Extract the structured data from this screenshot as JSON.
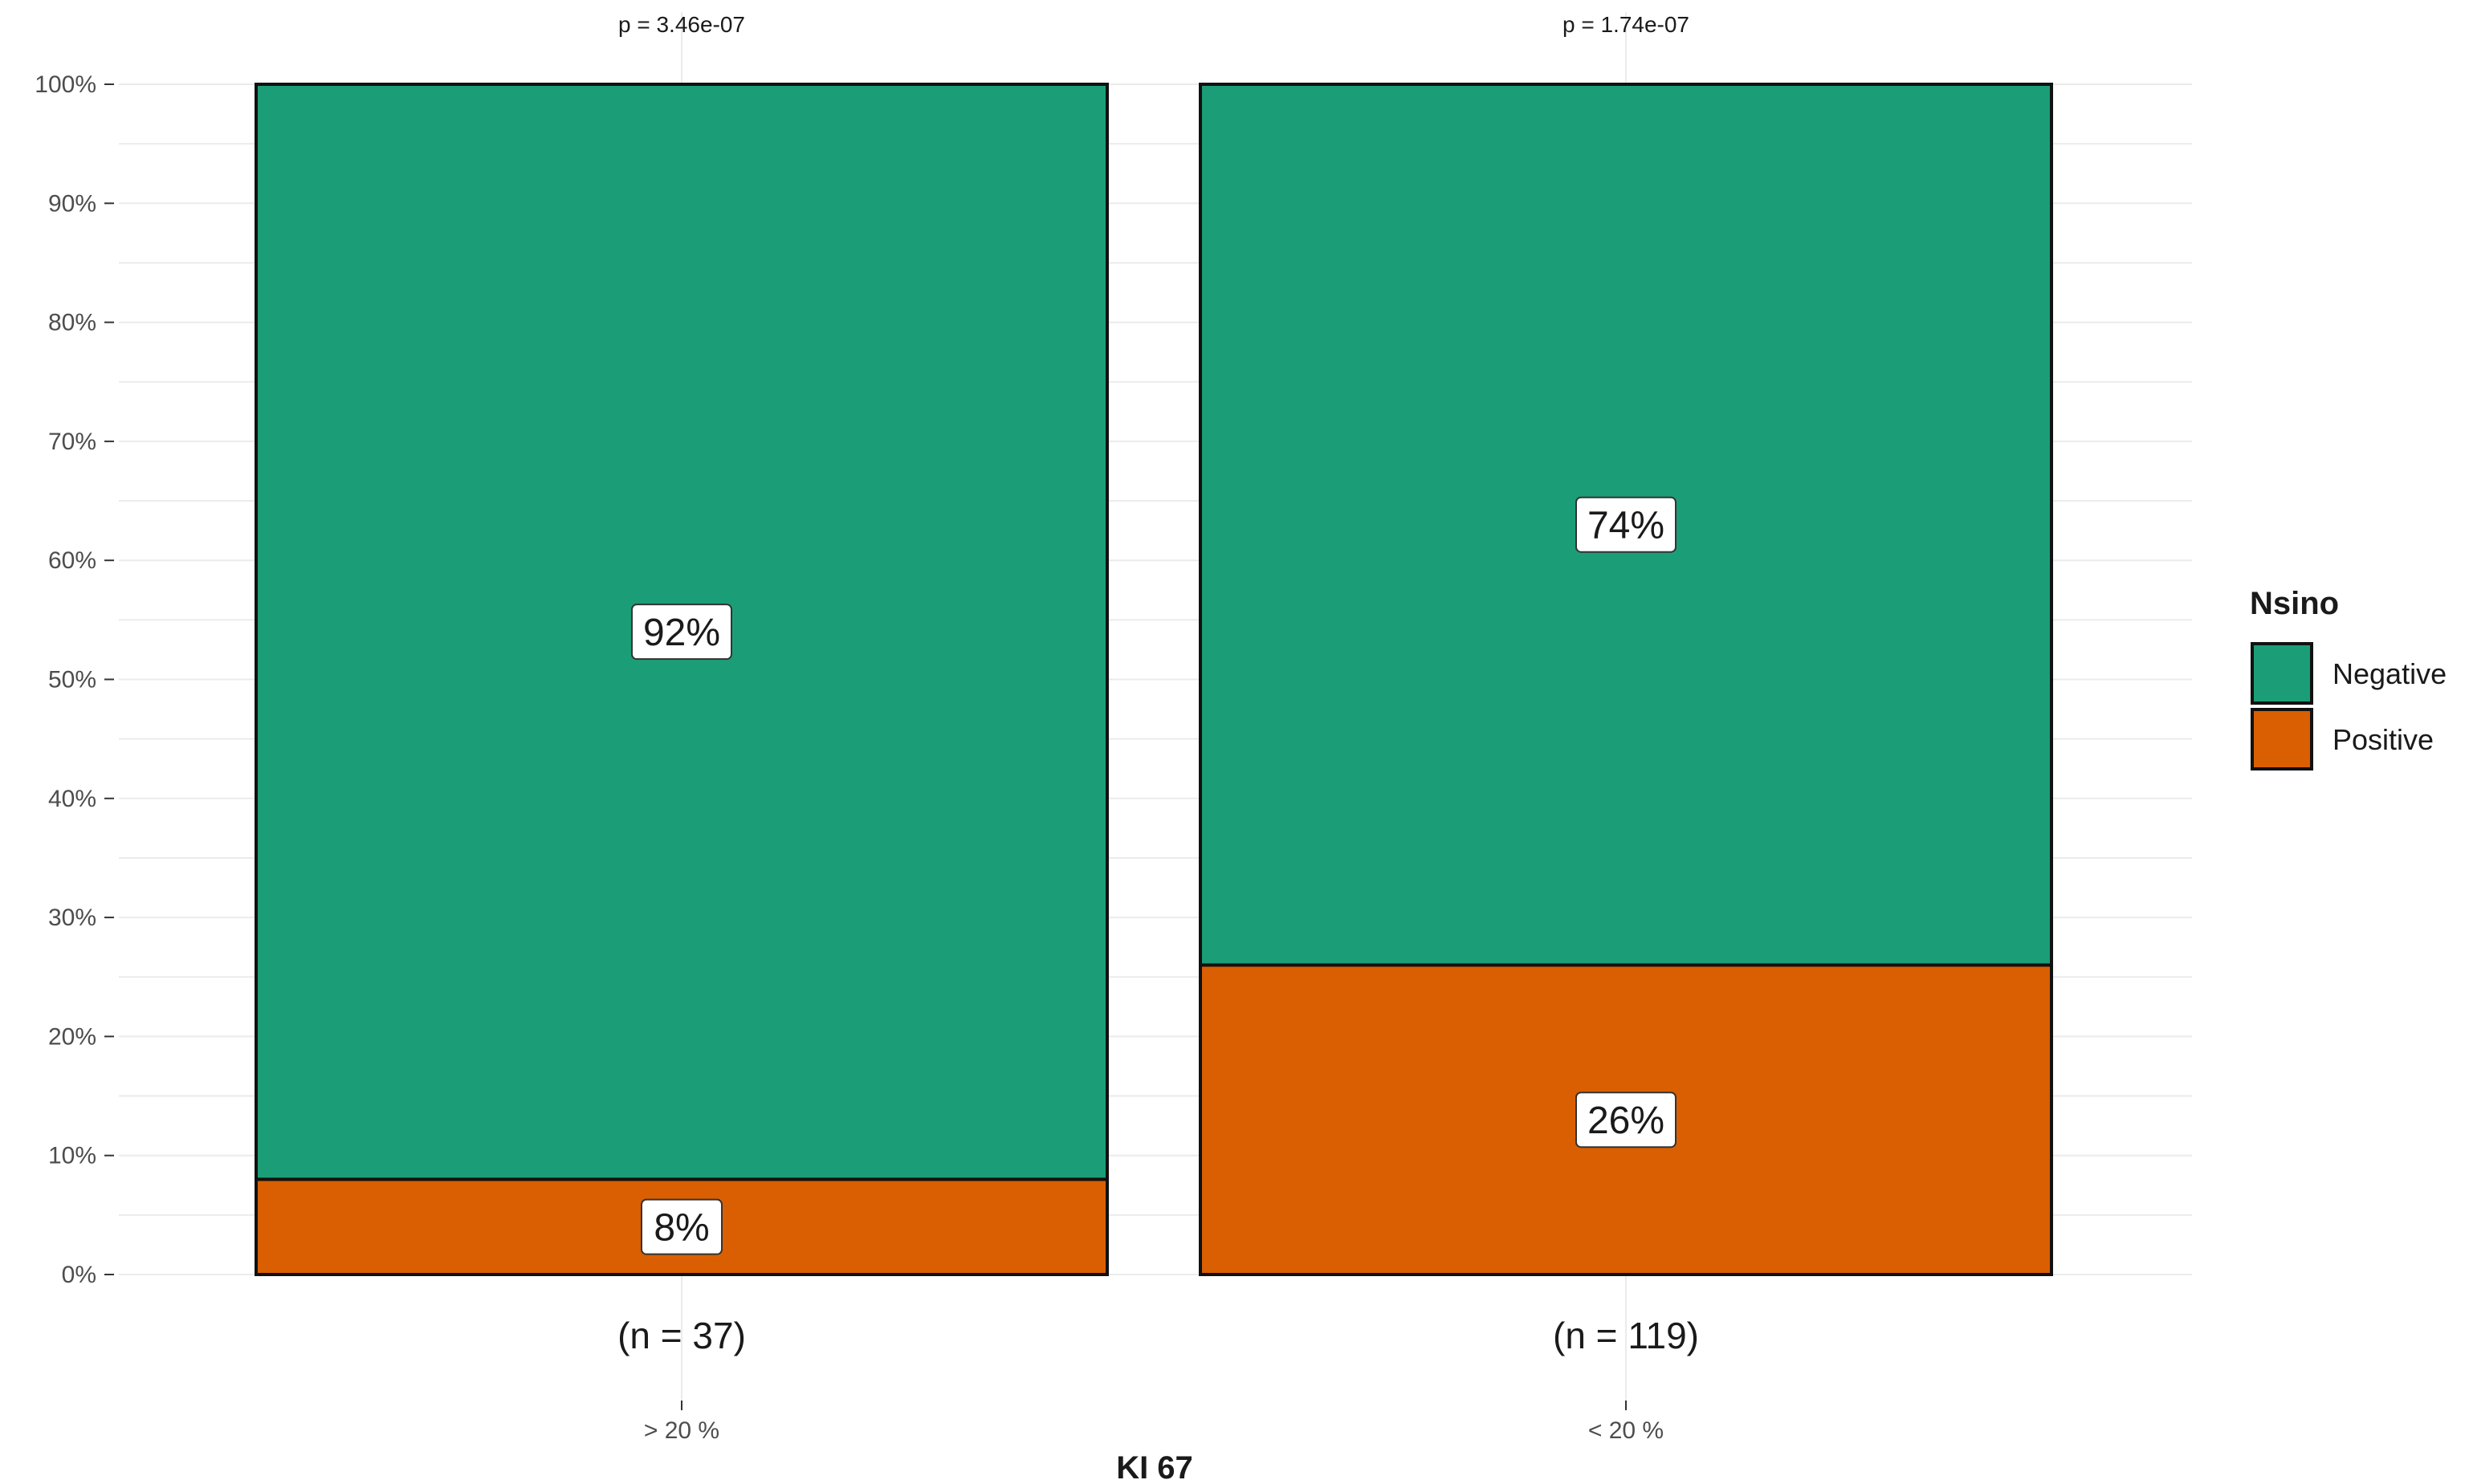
{
  "chart_data": {
    "type": "bar",
    "stacked": true,
    "categories": [
      "> 20 %",
      "< 20 %"
    ],
    "series": [
      {
        "name": "Positive",
        "values": [
          8,
          26
        ],
        "color": "#D95F02"
      },
      {
        "name": "Negative",
        "values": [
          92,
          74
        ],
        "color": "#1B9E77"
      }
    ],
    "data_labels": [
      {
        "category": "> 20 %",
        "series": "Positive",
        "text": "8%"
      },
      {
        "category": "> 20 %",
        "series": "Negative",
        "text": "92%"
      },
      {
        "category": "< 20 %",
        "series": "Positive",
        "text": "26%"
      },
      {
        "category": "< 20 %",
        "series": "Negative",
        "text": "74%"
      }
    ],
    "counts": [
      "(n = 37)",
      "(n = 119)"
    ],
    "p_values": [
      "p = 3.46e-07",
      "p = 1.74e-07"
    ],
    "xlabel": "KI 67",
    "ylabel": "",
    "ylim": [
      0,
      100
    ],
    "yticks": [
      0,
      10,
      20,
      30,
      40,
      50,
      60,
      70,
      80,
      90,
      100
    ],
    "ytick_labels": [
      "0%",
      "10%",
      "20%",
      "30%",
      "40%",
      "50%",
      "60%",
      "70%",
      "80%",
      "90%",
      "100%"
    ],
    "legend": {
      "title": "Nsino",
      "position": "right",
      "entries": [
        "Negative",
        "Positive"
      ]
    },
    "grid": true
  }
}
